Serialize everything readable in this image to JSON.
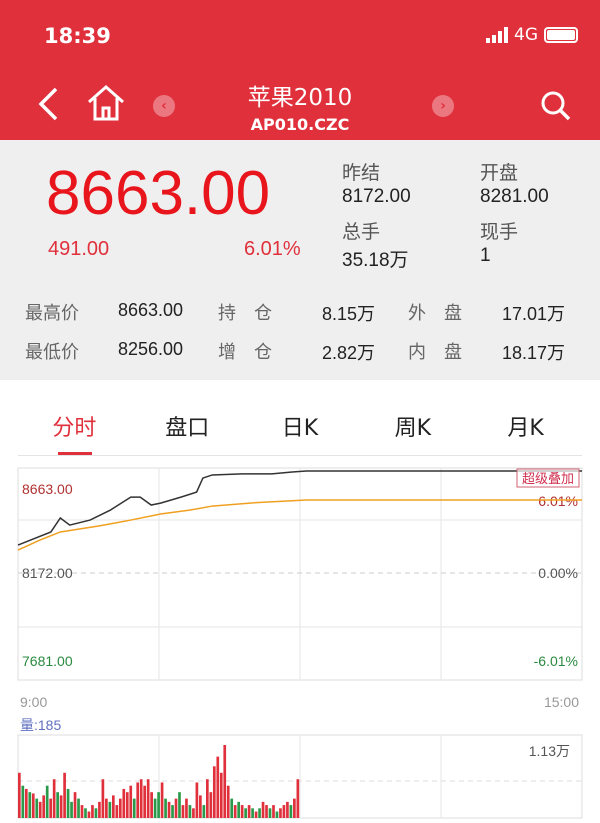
{
  "status": {
    "time": "18:39",
    "network": "4G"
  },
  "header": {
    "title": "苹果2010",
    "code": "AP010.CZC",
    "icons": [
      "back-icon",
      "home-icon",
      "prev-icon",
      "next-icon",
      "search-icon"
    ]
  },
  "quote": {
    "price": "8663.00",
    "change": "491.00",
    "change_pct": "6.01%",
    "prev_settle_label": "昨结",
    "prev_settle": "8172.00",
    "open_label": "开盘",
    "open": "8281.00",
    "volume_label": "总手",
    "volume": "35.18万",
    "last_vol_label": "现手",
    "last_vol": "1",
    "high_label": "最高价",
    "high": "8663.00",
    "oi_label": "持　仓",
    "oi": "8.15万",
    "outer_label": "外　盘",
    "outer": "17.01万",
    "low_label": "最低价",
    "low": "8256.00",
    "oi_chg_label": "增　仓",
    "oi_chg": "2.82万",
    "inner_label": "内　盘",
    "inner": "18.17万"
  },
  "tabs": [
    "分时",
    "盘口",
    "日K",
    "周K",
    "月K"
  ],
  "colors": {
    "up": "#e0303c",
    "down": "#2a9a4a",
    "price_line": "#333333",
    "avg_line": "#f0a020"
  },
  "chart_data": {
    "type": "line",
    "y_labels": {
      "top": "8663.00",
      "mid": "8172.00",
      "bottom": "7681.00",
      "top_pct": "6.01%",
      "mid_pct": "0.00%",
      "bottom_pct": "-6.01%"
    },
    "ylim": [
      7681,
      8663
    ],
    "x_labels": {
      "start": "9:00",
      "end": "15:00"
    },
    "overlay_button": "超级叠加",
    "volume_label": "量:185",
    "volume_max_label": "1.13万",
    "price": {
      "x": [
        "9:00",
        "9:08",
        "9:21",
        "9:27",
        "9:33",
        "9:46",
        "9:59",
        "10:12",
        "10:18",
        "10:25",
        "10:31",
        "10:44",
        "10:54",
        "10:58",
        "11:04",
        "11:23",
        "11:42",
        "11:55",
        "12:04",
        "15:00"
      ],
      "y": [
        8308,
        8332,
        8371,
        8438,
        8404,
        8428,
        8476,
        8538,
        8538,
        8500,
        8509,
        8538,
        8562,
        8629,
        8644,
        8649,
        8649,
        8658,
        8663,
        8663
      ]
    },
    "avg": {
      "x": [
        "9:00",
        "9:14",
        "9:27",
        "9:52",
        "10:12",
        "10:31",
        "10:50",
        "11:04",
        "11:29",
        "12:04",
        "15:00"
      ],
      "y": [
        8284,
        8332,
        8371,
        8400,
        8428,
        8457,
        8476,
        8495,
        8510,
        8524,
        8524
      ]
    },
    "volume": {
      "values": [
        7,
        5,
        4.5,
        4,
        3.8,
        3,
        2.5,
        3.5,
        5,
        3,
        6,
        4,
        3.5,
        7,
        4.5,
        2.5,
        4,
        3,
        2,
        1.5,
        1,
        2,
        1.5,
        2.5,
        6,
        3,
        2.5,
        3.5,
        2,
        3,
        4.5,
        4,
        5,
        3,
        5.5,
        6,
        5,
        6,
        4,
        3,
        4,
        5.5,
        3,
        2.5,
        2,
        3,
        4,
        2,
        3,
        2,
        1.5,
        5.5,
        3.5,
        2,
        6,
        4,
        8,
        9.5,
        7,
        11.3,
        5,
        3,
        2,
        2.5,
        2,
        1.5,
        2,
        1.5,
        1,
        1.5,
        2.5,
        2,
        1.5,
        2,
        1,
        1.5,
        2,
        2.5,
        2,
        3,
        6
      ],
      "colors": [
        "up",
        "down",
        "up",
        "down",
        "up",
        "down",
        "up",
        "up",
        "down",
        "up",
        "up",
        "down",
        "up",
        "up",
        "down",
        "down",
        "up",
        "down",
        "up",
        "down",
        "up",
        "up",
        "down",
        "up",
        "up",
        "up",
        "down",
        "up",
        "up",
        "up",
        "up",
        "up",
        "up",
        "down",
        "up",
        "up",
        "up",
        "up",
        "up",
        "down",
        "down",
        "up",
        "down",
        "up",
        "down",
        "up",
        "down",
        "up",
        "up",
        "down",
        "up",
        "up",
        "up",
        "down",
        "up",
        "up",
        "up",
        "up",
        "up",
        "up",
        "up",
        "down",
        "up",
        "down",
        "up",
        "down",
        "up",
        "down",
        "up",
        "down",
        "up",
        "up",
        "down",
        "up",
        "down",
        "up",
        "up",
        "up",
        "down",
        "up",
        "up"
      ]
    }
  }
}
